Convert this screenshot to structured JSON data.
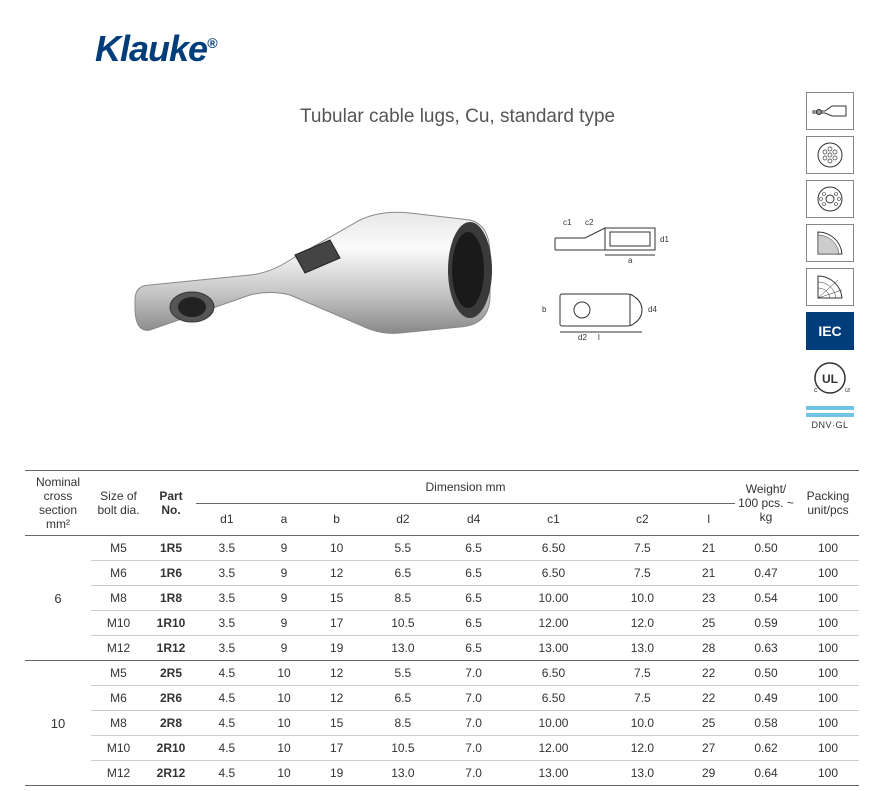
{
  "brand": "Klauke",
  "title": "Tubular cable lugs, Cu, standard type",
  "badges": {
    "iec": "IEC",
    "ul": "UL",
    "dnv": "DNV·GL"
  },
  "table": {
    "headers": {
      "nominal": "Nominal cross section mm²",
      "bolt": "Size of bolt dia.",
      "part": "Part No.",
      "dimension": "Dimension mm",
      "d1": "d1",
      "a": "a",
      "b": "b",
      "d2": "d2",
      "d4": "d4",
      "c1": "c1",
      "c2": "c2",
      "l": "l",
      "weight": "Weight/ 100 pcs. ~ kg",
      "packing": "Packing unit/pcs"
    },
    "groups": [
      {
        "nominal": "6",
        "rows": [
          {
            "bolt": "M5",
            "part": "1R5",
            "d1": "3.5",
            "a": "9",
            "b": "10",
            "d2": "5.5",
            "d4": "6.5",
            "c1": "6.50",
            "c2": "7.5",
            "l": "21",
            "weight": "0.50",
            "packing": "100"
          },
          {
            "bolt": "M6",
            "part": "1R6",
            "d1": "3.5",
            "a": "9",
            "b": "12",
            "d2": "6.5",
            "d4": "6.5",
            "c1": "6.50",
            "c2": "7.5",
            "l": "21",
            "weight": "0.47",
            "packing": "100"
          },
          {
            "bolt": "M8",
            "part": "1R8",
            "d1": "3.5",
            "a": "9",
            "b": "15",
            "d2": "8.5",
            "d4": "6.5",
            "c1": "10.00",
            "c2": "10.0",
            "l": "23",
            "weight": "0.54",
            "packing": "100"
          },
          {
            "bolt": "M10",
            "part": "1R10",
            "d1": "3.5",
            "a": "9",
            "b": "17",
            "d2": "10.5",
            "d4": "6.5",
            "c1": "12.00",
            "c2": "12.0",
            "l": "25",
            "weight": "0.59",
            "packing": "100"
          },
          {
            "bolt": "M12",
            "part": "1R12",
            "d1": "3.5",
            "a": "9",
            "b": "19",
            "d2": "13.0",
            "d4": "6.5",
            "c1": "13.00",
            "c2": "13.0",
            "l": "28",
            "weight": "0.63",
            "packing": "100"
          }
        ]
      },
      {
        "nominal": "10",
        "rows": [
          {
            "bolt": "M5",
            "part": "2R5",
            "d1": "4.5",
            "a": "10",
            "b": "12",
            "d2": "5.5",
            "d4": "7.0",
            "c1": "6.50",
            "c2": "7.5",
            "l": "22",
            "weight": "0.50",
            "packing": "100"
          },
          {
            "bolt": "M6",
            "part": "2R6",
            "d1": "4.5",
            "a": "10",
            "b": "12",
            "d2": "6.5",
            "d4": "7.0",
            "c1": "6.50",
            "c2": "7.5",
            "l": "22",
            "weight": "0.49",
            "packing": "100"
          },
          {
            "bolt": "M8",
            "part": "2R8",
            "d1": "4.5",
            "a": "10",
            "b": "15",
            "d2": "8.5",
            "d4": "7.0",
            "c1": "10.00",
            "c2": "10.0",
            "l": "25",
            "weight": "0.58",
            "packing": "100"
          },
          {
            "bolt": "M10",
            "part": "2R10",
            "d1": "4.5",
            "a": "10",
            "b": "17",
            "d2": "10.5",
            "d4": "7.0",
            "c1": "12.00",
            "c2": "12.0",
            "l": "27",
            "weight": "0.62",
            "packing": "100"
          },
          {
            "bolt": "M12",
            "part": "2R12",
            "d1": "4.5",
            "a": "10",
            "b": "19",
            "d2": "13.0",
            "d4": "7.0",
            "c1": "13.00",
            "c2": "13.0",
            "l": "29",
            "weight": "0.64",
            "packing": "100"
          }
        ]
      }
    ]
  },
  "colors": {
    "brand": "#003d7a",
    "text": "#333333",
    "border": "#666666",
    "rowBorder": "#cccccc",
    "cyan": "#6ec4e4"
  }
}
